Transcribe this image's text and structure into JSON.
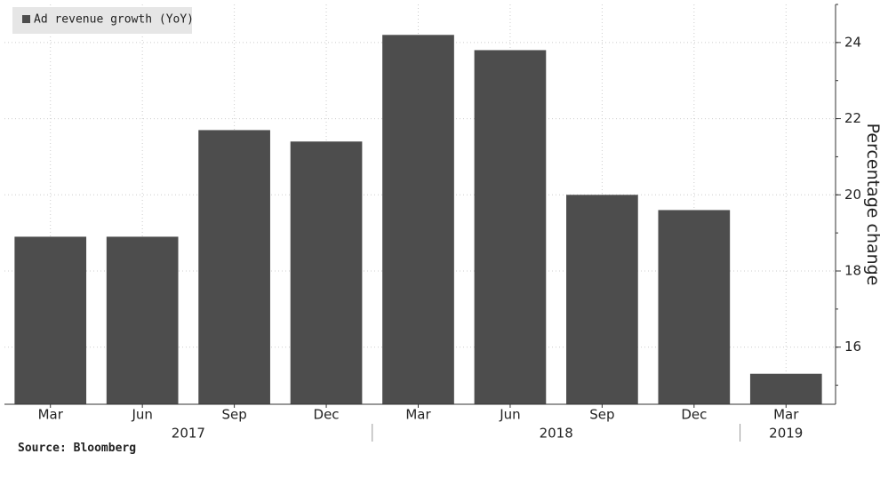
{
  "chart_data": {
    "type": "bar",
    "legend": "Ad revenue growth (YoY)",
    "y_axis_label": "Percentage change",
    "source": "Source: Bloomberg",
    "categories": [
      "Mar",
      "Jun",
      "Sep",
      "Dec",
      "Mar",
      "Jun",
      "Sep",
      "Dec",
      "Mar"
    ],
    "x_groups": [
      {
        "label": "2017",
        "start": 0,
        "end": 3
      },
      {
        "label": "2018",
        "start": 4,
        "end": 7
      },
      {
        "label": "2019",
        "start": 8,
        "end": 8
      }
    ],
    "values": [
      18.9,
      18.9,
      21.7,
      21.4,
      24.2,
      23.8,
      20.0,
      19.6,
      15.3
    ],
    "color": "#4d4d4d",
    "ylim": [
      14.5,
      25
    ],
    "yticks": [
      16,
      18,
      20,
      22,
      24
    ],
    "grid": true
  }
}
